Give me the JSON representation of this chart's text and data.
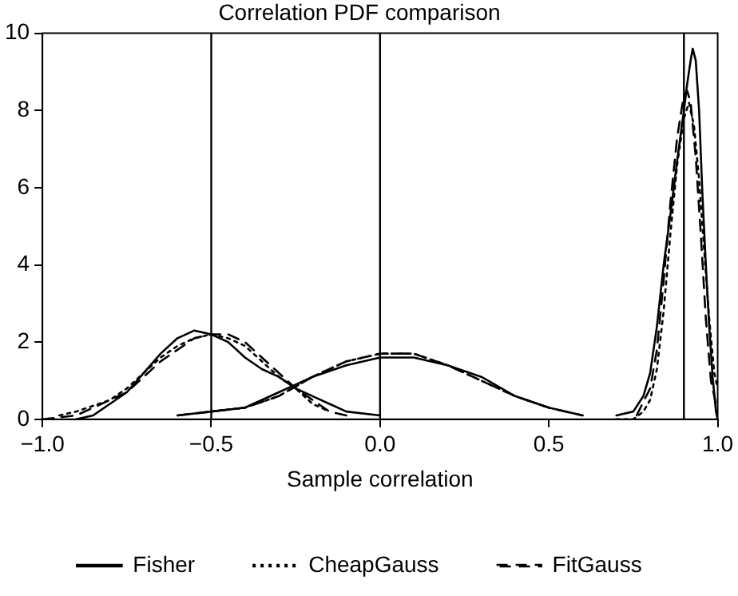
{
  "chart_data": {
    "type": "line",
    "title": "Correlation PDF comparison",
    "xlabel": "Sample correlation",
    "xlim": [
      -1,
      1
    ],
    "xticks": [
      {
        "value": -1,
        "label": "−1.0"
      },
      {
        "value": -0.5,
        "label": "−0.5"
      },
      {
        "value": 0,
        "label": "0.0"
      },
      {
        "value": 0.5,
        "label": "0.5"
      },
      {
        "value": 1,
        "label": "1.0"
      }
    ],
    "ylim": [
      0,
      10
    ],
    "yticks": [
      0,
      2,
      4,
      6,
      8,
      10
    ],
    "grid": false,
    "legend": "bottom",
    "marker": "none",
    "ref_lines": [
      {
        "axis": "x",
        "value": -0.5,
        "color": "#000000"
      },
      {
        "axis": "x",
        "value": 0,
        "color": "#000000"
      },
      {
        "axis": "x",
        "value": 0.9,
        "color": "#000000"
      }
    ],
    "series": [
      {
        "name": "Fisher",
        "color": "#000000",
        "line_style": "solid",
        "x": [
          -0.9,
          -0.85,
          -0.8,
          -0.75,
          -0.7,
          -0.65,
          -0.6,
          -0.55,
          -0.5,
          -0.45,
          -0.4,
          -0.35,
          -0.3,
          -0.25,
          -0.2,
          -0.15,
          -0.1,
          0
        ],
        "values": [
          0,
          0.1,
          0.4,
          0.7,
          1.2,
          1.7,
          2.1,
          2.3,
          2.2,
          2,
          1.6,
          1.3,
          1.1,
          0.8,
          0.6,
          0.4,
          0.2,
          0.1
        ]
      },
      {
        "name": "CheapGauss",
        "color": "#000000",
        "line_style": "dotted",
        "x": [
          -0.95,
          -0.9,
          -0.8,
          -0.75,
          -0.7,
          -0.65,
          -0.6,
          -0.55,
          -0.5,
          -0.45,
          -0.4,
          -0.35,
          -0.3,
          -0.25,
          -0.2,
          -0.15
        ],
        "values": [
          0.1,
          0.2,
          0.5,
          0.8,
          1.2,
          1.6,
          1.9,
          2.1,
          2.2,
          2.1,
          1.9,
          1.5,
          1.1,
          0.8,
          0.4,
          0.2
        ]
      },
      {
        "name": "FitGauss",
        "color": "#000000",
        "line_style": "dashed",
        "x": [
          -1,
          -0.9,
          -0.8,
          -0.75,
          -0.7,
          -0.65,
          -0.6,
          -0.55,
          -0.5,
          -0.45,
          -0.4,
          -0.35,
          -0.3,
          -0.25,
          -0.2,
          -0.15,
          -0.1
        ],
        "values": [
          0,
          0.1,
          0.5,
          0.7,
          1.1,
          1.5,
          1.8,
          2.1,
          2.2,
          2.2,
          2,
          1.6,
          1.2,
          0.8,
          0.5,
          0.2,
          0.1
        ]
      },
      {
        "color": "#000000",
        "line_style": "solid",
        "x": [
          -0.6,
          -0.5,
          -0.4,
          -0.3,
          -0.25,
          -0.2,
          -0.1,
          0,
          0.1,
          0.2,
          0.3,
          0.4,
          0.5,
          0.6
        ],
        "values": [
          0.1,
          0.2,
          0.3,
          0.7,
          0.9,
          1.1,
          1.4,
          1.6,
          1.6,
          1.4,
          1.1,
          0.6,
          0.3,
          0.1
        ]
      },
      {
        "color": "#000000",
        "line_style": "dotted",
        "x": [
          -0.5,
          -0.4,
          -0.3,
          -0.2,
          -0.1,
          0,
          0.1,
          0.2,
          0.3,
          0.4,
          0.5
        ],
        "values": [
          0.2,
          0.3,
          0.6,
          1.1,
          1.5,
          1.7,
          1.7,
          1.4,
          1,
          0.6,
          0.3
        ]
      },
      {
        "color": "#000000",
        "line_style": "dashed",
        "x": [
          -0.6,
          -0.5,
          -0.4,
          -0.3,
          -0.2,
          -0.1,
          0,
          0.1,
          0.2,
          0.3,
          0.4,
          0.5,
          0.6
        ],
        "values": [
          0.1,
          0.2,
          0.3,
          0.6,
          1.1,
          1.5,
          1.7,
          1.7,
          1.4,
          1,
          0.6,
          0.3,
          0.1
        ]
      },
      {
        "color": "#000000",
        "line_style": "solid",
        "x": [
          0.7,
          0.75,
          0.78,
          0.8,
          0.82,
          0.84,
          0.86,
          0.88,
          0.9,
          0.91,
          0.92,
          0.926,
          0.935,
          0.945,
          0.955,
          0.965,
          0.975,
          0.985,
          0.995,
          1
        ],
        "values": [
          0.1,
          0.2,
          0.6,
          1.2,
          2.4,
          4,
          5.3,
          6.7,
          8,
          8.7,
          9.3,
          9.6,
          9.3,
          8,
          5.8,
          4,
          2.4,
          1.1,
          0.2,
          0
        ]
      },
      {
        "color": "#000000",
        "line_style": "dotted",
        "x": [
          0.7,
          0.75,
          0.78,
          0.8,
          0.82,
          0.84,
          0.86,
          0.88,
          0.9,
          0.915,
          0.93,
          0.945,
          0.96,
          0.975,
          0.99,
          1
        ],
        "values": [
          0,
          0,
          0.2,
          0.5,
          1.3,
          2.8,
          4.8,
          6.6,
          7.8,
          8.2,
          7.6,
          6.2,
          4.4,
          2.6,
          1.2,
          0.8
        ]
      },
      {
        "color": "#000000",
        "line_style": "dashed",
        "x": [
          0.76,
          0.8,
          0.82,
          0.84,
          0.86,
          0.88,
          0.9,
          0.91,
          0.92,
          0.935,
          0.95,
          0.965,
          0.98,
          1
        ],
        "values": [
          0.1,
          0.8,
          1.8,
          3.6,
          5.6,
          7.3,
          8.4,
          8.5,
          8.2,
          6.8,
          4.8,
          2.6,
          1,
          0.2
        ]
      }
    ]
  }
}
